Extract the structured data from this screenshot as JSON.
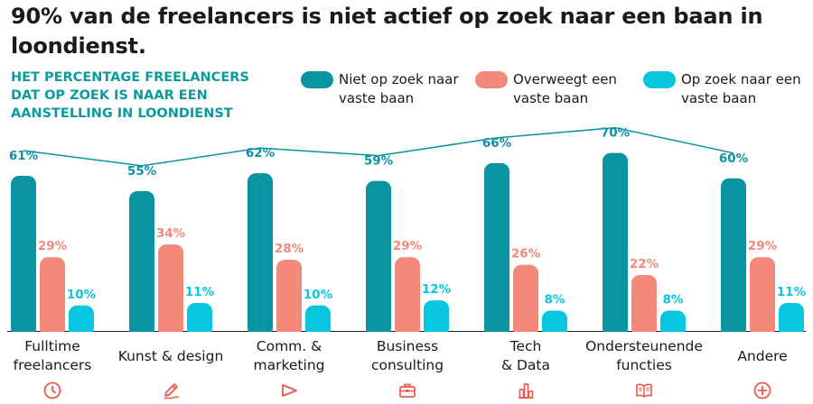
{
  "title": "90% van de freelancers is niet actief op zoek naar een baan in loondienst.",
  "subtitle": "HET PERCENTAGE FREELANCERS DAT OP ZOEK IS NAAR EEN AANSTELLING IN LOONDIENST",
  "colors": {
    "niet": "#0a93a0",
    "overweegt": "#f2897a",
    "op_zoek": "#07c6df",
    "line": "#0a93a0",
    "icon": "#f0564d"
  },
  "legend": [
    {
      "label": "Niet op zoek naar vaste baan",
      "color": "#0a93a0"
    },
    {
      "label": "Overweegt een vaste baan",
      "color": "#f2897a"
    },
    {
      "label": "Op zoek naar een vaste baan",
      "color": "#07c6df"
    }
  ],
  "chart_data": {
    "type": "bar",
    "categories": [
      "Fulltime freelancers",
      "Kunst & design",
      "Comm. & marketing",
      "Business consulting",
      "Tech & Data",
      "Ondersteunende functies",
      "Andere"
    ],
    "series": [
      {
        "name": "Niet op zoek naar vaste baan",
        "values": [
          61,
          55,
          62,
          59,
          66,
          70,
          60
        ],
        "labels": [
          "61%",
          "55%",
          "62%",
          "59%",
          "66%",
          "70%",
          "60%"
        ]
      },
      {
        "name": "Overweegt een vaste baan",
        "values": [
          29,
          34,
          28,
          29,
          26,
          22,
          29
        ],
        "labels": [
          "29%",
          "34%",
          "28%",
          "29%",
          "26%",
          "22%",
          "29%"
        ]
      },
      {
        "name": "Op zoek naar een vaste baan",
        "values": [
          10,
          11,
          10,
          12,
          8,
          8,
          11
        ],
        "labels": [
          "10%",
          "11%",
          "10%",
          "12%",
          "8%",
          "8%",
          "11%"
        ]
      }
    ],
    "line_series": "Niet op zoek naar vaste baan",
    "ylim": [
      0,
      100
    ],
    "grid": false
  },
  "category_labels": [
    "Fulltime\nfreelancers",
    "Kunst & design",
    "Comm. &\nmarketing",
    "Business\nconsulting",
    "Tech\n& Data",
    "Ondersteunende\nfuncties",
    "Andere"
  ],
  "category_icons": [
    "clock-icon",
    "pen-icon",
    "megaphone-icon",
    "briefcase-icon",
    "bar-chart-icon",
    "book-icon",
    "plus-circle-icon"
  ]
}
